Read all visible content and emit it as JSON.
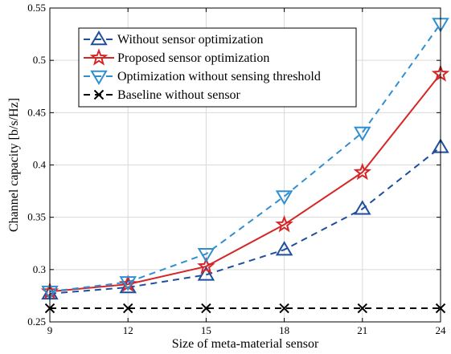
{
  "chart_data": {
    "type": "line",
    "xlabel": "Size of meta-material sensor",
    "ylabel": "Channel capacity [b/s/Hz]",
    "xlim": [
      9,
      24
    ],
    "ylim": [
      0.25,
      0.55
    ],
    "xticks": [
      9,
      12,
      15,
      18,
      21,
      24
    ],
    "yticks": [
      0.25,
      0.3,
      0.35,
      0.4,
      0.45,
      0.5,
      0.55
    ],
    "ytick_labels": [
      "0.25",
      "0.3",
      "0.35",
      "0.4",
      "0.45",
      "0.5",
      "0.55"
    ],
    "grid": true,
    "legend_position": "top-left",
    "x": [
      9,
      12,
      15,
      18,
      21,
      24
    ],
    "series": [
      {
        "name": "Without sensor optimization",
        "values": [
          0.277,
          0.283,
          0.295,
          0.319,
          0.358,
          0.417
        ],
        "color": "#1f4e9c",
        "line_style": "dashed",
        "marker": "triangle-up"
      },
      {
        "name": "Proposed sensor optimization",
        "values": [
          0.279,
          0.286,
          0.303,
          0.343,
          0.393,
          0.487
        ],
        "color": "#d62728",
        "line_style": "solid",
        "marker": "star"
      },
      {
        "name": "Optimization without sensing threshold",
        "values": [
          0.279,
          0.288,
          0.315,
          0.37,
          0.431,
          0.535
        ],
        "color": "#2f8fd0",
        "line_style": "dashed",
        "marker": "triangle-down"
      },
      {
        "name": "Baseline without sensor",
        "values": [
          0.263,
          0.263,
          0.263,
          0.263,
          0.263,
          0.263
        ],
        "color": "#000000",
        "line_style": "dashed",
        "marker": "x"
      }
    ]
  }
}
